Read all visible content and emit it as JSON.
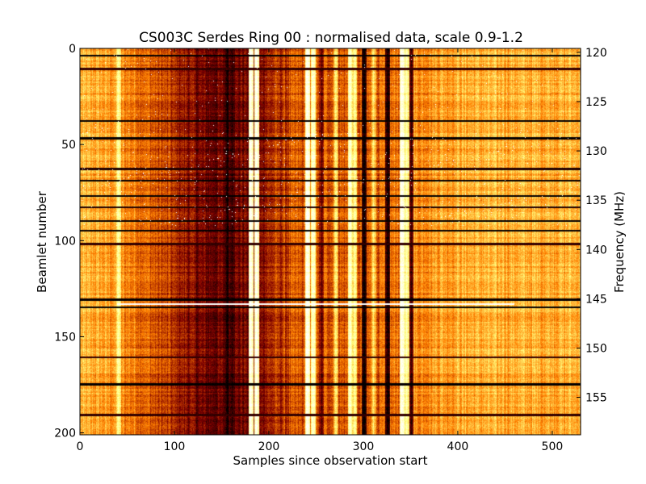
{
  "chart_data": {
    "type": "heatmap",
    "title": "CS003C Serdes Ring 00 : normalised data, scale 0.9-1.2",
    "xlabel": "Samples since observation start",
    "ylabel": "Beamlet number",
    "y2label": "Frequency (MHz)",
    "xlim": [
      0,
      530
    ],
    "ylim": [
      0,
      201
    ],
    "y2lim": [
      119.6,
      158.8
    ],
    "colormap": "afmhot",
    "color_scale": [
      0.9,
      1.2
    ],
    "x_ticks": [
      0,
      100,
      200,
      300,
      400,
      500
    ],
    "y_ticks": [
      0,
      50,
      100,
      150,
      200
    ],
    "y2_ticks": [
      120,
      125,
      130,
      135,
      140,
      145,
      150,
      155
    ],
    "bright_columns": [
      {
        "sample": 40,
        "value": 1.15
      },
      {
        "sample": 180,
        "value": 1.2
      },
      {
        "sample": 186,
        "value": 1.2
      },
      {
        "sample": 240,
        "value": 1.2
      },
      {
        "sample": 246,
        "value": 1.18
      },
      {
        "sample": 270,
        "value": 1.12
      },
      {
        "sample": 285,
        "value": 1.18
      },
      {
        "sample": 290,
        "value": 1.15
      },
      {
        "sample": 310,
        "value": 1.12
      },
      {
        "sample": 340,
        "value": 1.2
      },
      {
        "sample": 345,
        "value": 1.16
      }
    ],
    "dark_columns": [
      {
        "sample": 155,
        "value": 0.9
      },
      {
        "sample": 160,
        "value": 0.92
      },
      {
        "sample": 255,
        "value": 0.95
      },
      {
        "sample": 300,
        "value": 0.9
      },
      {
        "sample": 325,
        "value": 0.9
      },
      {
        "sample": 350,
        "value": 0.93
      }
    ],
    "dark_rows": [
      {
        "beamlet": 3,
        "value": 0.9
      },
      {
        "beamlet": 10,
        "value": 0.93
      },
      {
        "beamlet": 37,
        "value": 0.9
      },
      {
        "beamlet": 46,
        "value": 0.9
      },
      {
        "beamlet": 62,
        "value": 0.92
      },
      {
        "beamlet": 68,
        "value": 0.9
      },
      {
        "beamlet": 76,
        "value": 0.9
      },
      {
        "beamlet": 82,
        "value": 0.92
      },
      {
        "beamlet": 89,
        "value": 0.9
      },
      {
        "beamlet": 94,
        "value": 0.9
      },
      {
        "beamlet": 101,
        "value": 0.93
      },
      {
        "beamlet": 130,
        "value": 0.9
      },
      {
        "beamlet": 134,
        "value": 0.9
      },
      {
        "beamlet": 160,
        "value": 0.93
      },
      {
        "beamlet": 174,
        "value": 0.9
      },
      {
        "beamlet": 190,
        "value": 0.93
      }
    ],
    "bright_rows": [
      {
        "beamlet": 133,
        "value": 1.2,
        "x_range": [
          40,
          460
        ]
      }
    ]
  }
}
